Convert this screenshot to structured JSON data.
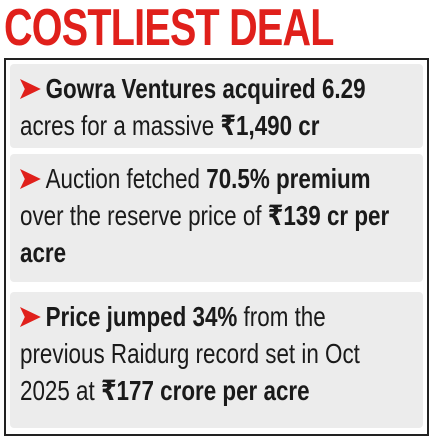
{
  "header": {
    "title": "COSTLIEST DEAL"
  },
  "bullets": [
    {
      "segments": [
        {
          "text": "Gowra Ventures acquired 6.29",
          "bold": true
        },
        {
          "text": " acres for a massive ",
          "bold": false
        },
        {
          "text": "₹1,490 cr",
          "bold": true
        }
      ]
    },
    {
      "segments": [
        {
          "text": "Auction fetched ",
          "bold": false
        },
        {
          "text": "70.5% premium",
          "bold": true
        },
        {
          "text": " over the reserve price of ",
          "bold": false
        },
        {
          "text": "₹139 cr per acre",
          "bold": true
        }
      ]
    },
    {
      "segments": [
        {
          "text": "Price jumped 34%",
          "bold": true
        },
        {
          "text": " from the previous Raidurg record set in Oct 2025 at ",
          "bold": false
        },
        {
          "text": "₹177 crore per acre",
          "bold": true
        }
      ]
    }
  ]
}
